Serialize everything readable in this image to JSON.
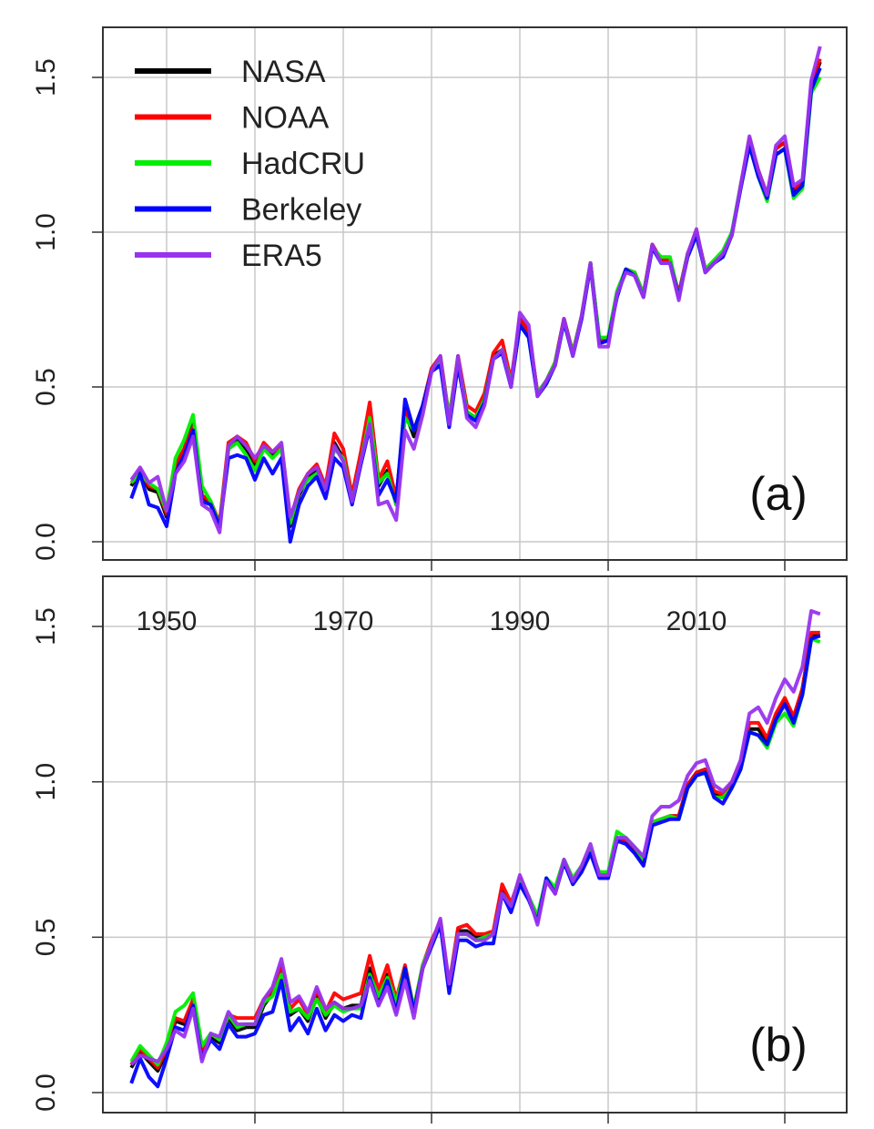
{
  "chart_data": {
    "type": "line",
    "x_start": 1946,
    "x_end": 2024,
    "xlim": [
      1943,
      2027
    ],
    "ylim": [
      -0.06,
      1.66
    ],
    "yticks": [
      "0.0",
      "0.5",
      "1.0",
      "1.5"
    ],
    "ytick_values": [
      0,
      0.5,
      1.0,
      1.5
    ],
    "xgrid": [
      1950,
      1960,
      1970,
      1980,
      1990,
      2000,
      2010,
      2020
    ],
    "xtick_labels": [
      "1950",
      "1970",
      "1990",
      "2010"
    ],
    "xtick_label_values": [
      1950,
      1970,
      1990,
      2010
    ],
    "grid": true,
    "legend_placement": "top-left",
    "colors": {
      "NASA": "#000000",
      "NOAA": "#ff0000",
      "HadCRU": "#00ee00",
      "Berkeley": "#0000ff",
      "ERA5": "#9933ee"
    },
    "panels": [
      {
        "label": "(a)",
        "series": [
          {
            "name": "NASA",
            "values": [
              0.18,
              0.23,
              0.17,
              0.16,
              0.08,
              0.24,
              0.3,
              0.38,
              0.15,
              0.12,
              0.05,
              0.3,
              0.33,
              0.3,
              0.25,
              0.31,
              0.28,
              0.31,
              0.05,
              0.15,
              0.21,
              0.23,
              0.17,
              0.32,
              0.27,
              0.14,
              0.27,
              0.4,
              0.18,
              0.23,
              0.12,
              0.42,
              0.34,
              0.43,
              0.55,
              0.59,
              0.4,
              0.59,
              0.42,
              0.4,
              0.47,
              0.6,
              0.62,
              0.51,
              0.72,
              0.68,
              0.48,
              0.52,
              0.58,
              0.72,
              0.61,
              0.73,
              0.9,
              0.65,
              0.65,
              0.8,
              0.88,
              0.87,
              0.8,
              0.96,
              0.91,
              0.91,
              0.8,
              0.93,
              1.0,
              0.88,
              0.9,
              0.93,
              0.99,
              1.15,
              1.3,
              1.2,
              1.12,
              1.27,
              1.29,
              1.13,
              1.16,
              1.47,
              1.55
            ]
          },
          {
            "name": "NOAA",
            "values": [
              0.19,
              0.23,
              0.18,
              0.17,
              0.09,
              0.25,
              0.3,
              0.37,
              0.15,
              0.13,
              0.06,
              0.32,
              0.34,
              0.32,
              0.26,
              0.32,
              0.29,
              0.31,
              0.07,
              0.17,
              0.22,
              0.25,
              0.18,
              0.35,
              0.3,
              0.15,
              0.29,
              0.45,
              0.2,
              0.26,
              0.14,
              0.43,
              0.36,
              0.44,
              0.56,
              0.6,
              0.4,
              0.6,
              0.44,
              0.42,
              0.48,
              0.61,
              0.65,
              0.52,
              0.72,
              0.68,
              0.48,
              0.52,
              0.58,
              0.72,
              0.61,
              0.73,
              0.9,
              0.65,
              0.66,
              0.8,
              0.88,
              0.87,
              0.8,
              0.96,
              0.91,
              0.91,
              0.8,
              0.93,
              1.0,
              0.88,
              0.9,
              0.93,
              0.99,
              1.15,
              1.3,
              1.2,
              1.12,
              1.27,
              1.29,
              1.14,
              1.16,
              1.48,
              1.56
            ]
          },
          {
            "name": "HadCRU",
            "values": [
              0.19,
              0.22,
              0.19,
              0.17,
              0.1,
              0.27,
              0.33,
              0.41,
              0.18,
              0.13,
              0.05,
              0.3,
              0.32,
              0.28,
              0.23,
              0.3,
              0.27,
              0.3,
              0.06,
              0.16,
              0.2,
              0.22,
              0.17,
              0.3,
              0.27,
              0.13,
              0.26,
              0.4,
              0.19,
              0.22,
              0.12,
              0.4,
              0.36,
              0.43,
              0.55,
              0.59,
              0.4,
              0.59,
              0.42,
              0.4,
              0.46,
              0.59,
              0.62,
              0.51,
              0.7,
              0.66,
              0.48,
              0.52,
              0.58,
              0.71,
              0.61,
              0.73,
              0.9,
              0.66,
              0.66,
              0.81,
              0.88,
              0.87,
              0.8,
              0.95,
              0.92,
              0.92,
              0.79,
              0.93,
              0.99,
              0.88,
              0.91,
              0.94,
              1.0,
              1.15,
              1.28,
              1.18,
              1.1,
              1.25,
              1.27,
              1.11,
              1.14,
              1.45,
              1.5
            ]
          },
          {
            "name": "Berkeley",
            "values": [
              0.14,
              0.22,
              0.12,
              0.11,
              0.05,
              0.22,
              0.28,
              0.36,
              0.13,
              0.12,
              0.05,
              0.27,
              0.28,
              0.27,
              0.2,
              0.27,
              0.22,
              0.27,
              0.0,
              0.12,
              0.18,
              0.21,
              0.14,
              0.27,
              0.24,
              0.12,
              0.25,
              0.37,
              0.15,
              0.2,
              0.13,
              0.46,
              0.36,
              0.44,
              0.55,
              0.57,
              0.37,
              0.57,
              0.41,
              0.39,
              0.45,
              0.59,
              0.61,
              0.5,
              0.7,
              0.66,
              0.47,
              0.51,
              0.57,
              0.71,
              0.6,
              0.72,
              0.89,
              0.64,
              0.65,
              0.79,
              0.88,
              0.86,
              0.79,
              0.95,
              0.9,
              0.9,
              0.79,
              0.92,
              0.99,
              0.87,
              0.9,
              0.92,
              0.99,
              1.14,
              1.28,
              1.18,
              1.11,
              1.25,
              1.27,
              1.12,
              1.15,
              1.46,
              1.53
            ]
          },
          {
            "name": "ERA5",
            "values": [
              0.2,
              0.24,
              0.19,
              0.21,
              0.1,
              0.22,
              0.26,
              0.34,
              0.12,
              0.1,
              0.03,
              0.31,
              0.34,
              0.31,
              0.27,
              0.31,
              0.29,
              0.32,
              0.08,
              0.16,
              0.22,
              0.24,
              0.17,
              0.31,
              0.26,
              0.13,
              0.26,
              0.38,
              0.12,
              0.13,
              0.07,
              0.36,
              0.3,
              0.41,
              0.55,
              0.6,
              0.38,
              0.6,
              0.4,
              0.37,
              0.44,
              0.59,
              0.62,
              0.5,
              0.74,
              0.7,
              0.47,
              0.52,
              0.57,
              0.72,
              0.6,
              0.73,
              0.9,
              0.63,
              0.63,
              0.8,
              0.87,
              0.86,
              0.79,
              0.96,
              0.9,
              0.9,
              0.78,
              0.93,
              1.01,
              0.87,
              0.9,
              0.93,
              0.99,
              1.15,
              1.31,
              1.2,
              1.12,
              1.28,
              1.31,
              1.15,
              1.17,
              1.49,
              1.6
            ]
          }
        ]
      },
      {
        "label": "(b)",
        "series": [
          {
            "name": "NASA",
            "values": [
              0.08,
              0.13,
              0.1,
              0.07,
              0.13,
              0.23,
              0.22,
              0.29,
              0.12,
              0.18,
              0.16,
              0.24,
              0.2,
              0.21,
              0.21,
              0.28,
              0.32,
              0.4,
              0.25,
              0.27,
              0.23,
              0.31,
              0.24,
              0.29,
              0.27,
              0.28,
              0.28,
              0.4,
              0.3,
              0.38,
              0.28,
              0.4,
              0.26,
              0.4,
              0.48,
              0.55,
              0.34,
              0.52,
              0.52,
              0.5,
              0.5,
              0.51,
              0.65,
              0.6,
              0.68,
              0.63,
              0.56,
              0.68,
              0.65,
              0.74,
              0.68,
              0.72,
              0.78,
              0.7,
              0.7,
              0.82,
              0.81,
              0.78,
              0.74,
              0.87,
              0.88,
              0.89,
              0.89,
              0.99,
              1.03,
              1.04,
              0.96,
              0.95,
              0.99,
              1.05,
              1.17,
              1.17,
              1.13,
              1.21,
              1.26,
              1.2,
              1.3,
              1.47,
              1.47
            ]
          },
          {
            "name": "NOAA",
            "values": [
              0.09,
              0.14,
              0.11,
              0.08,
              0.14,
              0.24,
              0.23,
              0.3,
              0.13,
              0.19,
              0.17,
              0.25,
              0.24,
              0.24,
              0.24,
              0.3,
              0.33,
              0.41,
              0.27,
              0.3,
              0.25,
              0.33,
              0.26,
              0.32,
              0.3,
              0.31,
              0.32,
              0.44,
              0.33,
              0.41,
              0.3,
              0.41,
              0.27,
              0.41,
              0.49,
              0.55,
              0.35,
              0.53,
              0.54,
              0.51,
              0.51,
              0.52,
              0.67,
              0.61,
              0.69,
              0.63,
              0.56,
              0.68,
              0.65,
              0.74,
              0.68,
              0.72,
              0.78,
              0.7,
              0.7,
              0.82,
              0.81,
              0.78,
              0.74,
              0.87,
              0.88,
              0.89,
              0.89,
              0.99,
              1.03,
              1.04,
              0.97,
              0.96,
              1.0,
              1.06,
              1.19,
              1.19,
              1.14,
              1.22,
              1.27,
              1.21,
              1.3,
              1.48,
              1.48
            ]
          },
          {
            "name": "HadCRU",
            "values": [
              0.1,
              0.15,
              0.12,
              0.09,
              0.16,
              0.26,
              0.28,
              0.32,
              0.15,
              0.19,
              0.17,
              0.25,
              0.21,
              0.22,
              0.22,
              0.29,
              0.31,
              0.38,
              0.26,
              0.27,
              0.24,
              0.3,
              0.25,
              0.28,
              0.26,
              0.27,
              0.27,
              0.38,
              0.31,
              0.37,
              0.29,
              0.4,
              0.27,
              0.41,
              0.48,
              0.54,
              0.35,
              0.51,
              0.51,
              0.49,
              0.5,
              0.51,
              0.64,
              0.6,
              0.68,
              0.63,
              0.57,
              0.69,
              0.66,
              0.75,
              0.69,
              0.73,
              0.78,
              0.71,
              0.71,
              0.84,
              0.82,
              0.79,
              0.75,
              0.87,
              0.88,
              0.89,
              0.88,
              0.98,
              1.02,
              1.03,
              0.95,
              0.95,
              0.98,
              1.04,
              1.16,
              1.15,
              1.11,
              1.19,
              1.22,
              1.18,
              1.28,
              1.46,
              1.45
            ]
          },
          {
            "name": "Berkeley",
            "values": [
              0.03,
              0.11,
              0.05,
              0.02,
              0.11,
              0.21,
              0.2,
              0.28,
              0.11,
              0.17,
              0.14,
              0.22,
              0.18,
              0.18,
              0.19,
              0.25,
              0.26,
              0.36,
              0.2,
              0.24,
              0.19,
              0.27,
              0.2,
              0.25,
              0.23,
              0.25,
              0.24,
              0.37,
              0.28,
              0.36,
              0.26,
              0.4,
              0.26,
              0.4,
              0.47,
              0.54,
              0.32,
              0.49,
              0.49,
              0.47,
              0.48,
              0.48,
              0.64,
              0.58,
              0.67,
              0.62,
              0.55,
              0.69,
              0.64,
              0.74,
              0.67,
              0.71,
              0.77,
              0.69,
              0.69,
              0.81,
              0.8,
              0.77,
              0.73,
              0.86,
              0.87,
              0.88,
              0.88,
              0.98,
              1.02,
              1.03,
              0.95,
              0.93,
              0.98,
              1.04,
              1.16,
              1.15,
              1.12,
              1.2,
              1.25,
              1.19,
              1.28,
              1.46,
              1.47
            ]
          },
          {
            "name": "ERA5",
            "values": [
              0.09,
              0.12,
              0.11,
              0.1,
              0.14,
              0.2,
              0.18,
              0.27,
              0.1,
              0.19,
              0.18,
              0.26,
              0.22,
              0.22,
              0.22,
              0.3,
              0.34,
              0.43,
              0.29,
              0.31,
              0.26,
              0.34,
              0.27,
              0.29,
              0.27,
              0.27,
              0.28,
              0.36,
              0.28,
              0.34,
              0.25,
              0.36,
              0.24,
              0.4,
              0.48,
              0.56,
              0.35,
              0.51,
              0.51,
              0.49,
              0.49,
              0.51,
              0.64,
              0.6,
              0.7,
              0.63,
              0.54,
              0.68,
              0.64,
              0.75,
              0.68,
              0.73,
              0.8,
              0.7,
              0.7,
              0.82,
              0.82,
              0.79,
              0.76,
              0.89,
              0.92,
              0.92,
              0.94,
              1.02,
              1.06,
              1.07,
              0.99,
              0.97,
              1.0,
              1.07,
              1.22,
              1.24,
              1.19,
              1.27,
              1.33,
              1.29,
              1.37,
              1.55,
              1.54
            ]
          }
        ]
      }
    ]
  }
}
